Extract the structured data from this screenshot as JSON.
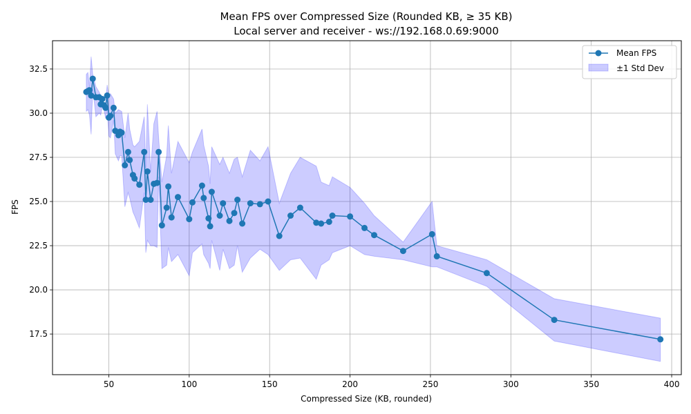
{
  "chart_data": {
    "type": "line",
    "title": "Mean FPS over Compressed Size (Rounded KB, ≥ 35 KB)",
    "subtitle": "Local server and receiver - ws://192.168.0.69:9000",
    "xlabel": "Compressed Size (KB, rounded)",
    "ylabel": "FPS",
    "xlim": [
      15,
      406
    ],
    "ylim": [
      15.2,
      34.1
    ],
    "xticks": [
      50,
      100,
      150,
      200,
      250,
      300,
      350,
      400
    ],
    "yticks": [
      17.5,
      20.0,
      22.5,
      25.0,
      27.5,
      30.0,
      32.5
    ],
    "grid": true,
    "legend_position": "top-right",
    "colors": {
      "line": "#1f77b4",
      "band": "#0000ff",
      "grid": "#b0b0b0"
    },
    "series": [
      {
        "name": "Mean FPS",
        "x": [
          36,
          37,
          38,
          39,
          40,
          42,
          44,
          45,
          46,
          47,
          48,
          49,
          50,
          51,
          53,
          54,
          56,
          57,
          58,
          60,
          62,
          63,
          65,
          66,
          69,
          72,
          73,
          74,
          76,
          78,
          80,
          81,
          83,
          86,
          87,
          89,
          93,
          100,
          102,
          108,
          109,
          112,
          113,
          114,
          119,
          121,
          125,
          128,
          130,
          133,
          138,
          144,
          149,
          156,
          163,
          169,
          179,
          182,
          187,
          189,
          200,
          209,
          215,
          233,
          251,
          254,
          285,
          327,
          393
        ],
        "y": [
          31.2,
          31.25,
          31.3,
          31.0,
          31.95,
          30.9,
          30.9,
          30.5,
          30.8,
          30.45,
          30.3,
          31.0,
          29.75,
          29.85,
          30.3,
          29.0,
          28.75,
          28.95,
          28.9,
          27.05,
          27.8,
          27.35,
          26.5,
          26.3,
          25.95,
          27.8,
          25.1,
          26.7,
          25.1,
          26.0,
          26.05,
          27.8,
          23.65,
          24.65,
          25.85,
          24.1,
          25.25,
          24.0,
          24.95,
          25.9,
          25.2,
          24.05,
          23.6,
          25.55,
          24.2,
          24.9,
          23.9,
          24.35,
          25.1,
          23.75,
          24.9,
          24.85,
          25.0,
          23.05,
          24.2,
          24.65,
          23.8,
          23.75,
          23.85,
          24.2,
          24.15,
          23.5,
          23.1,
          22.2,
          23.15,
          21.9,
          20.95,
          18.3,
          17.2
        ]
      },
      {
        "name": "±1 Std Dev",
        "x": [
          36,
          37,
          38,
          39,
          40,
          42,
          44,
          45,
          46,
          47,
          48,
          49,
          50,
          51,
          53,
          54,
          56,
          57,
          58,
          60,
          62,
          63,
          65,
          66,
          69,
          72,
          73,
          74,
          76,
          78,
          80,
          81,
          83,
          86,
          87,
          89,
          93,
          100,
          102,
          108,
          109,
          112,
          113,
          114,
          119,
          121,
          125,
          128,
          130,
          133,
          138,
          144,
          149,
          156,
          163,
          169,
          179,
          182,
          187,
          189,
          200,
          209,
          215,
          233,
          251,
          254,
          285,
          327,
          393
        ],
        "upper": [
          32.2,
          32.3,
          31.5,
          33.2,
          32.2,
          31.5,
          31.2,
          31.0,
          30.9,
          30.5,
          30.6,
          31.6,
          31.0,
          31.1,
          30.8,
          30.0,
          30.2,
          30.15,
          30.1,
          28.6,
          30.0,
          29.1,
          28.2,
          28.1,
          28.4,
          29.8,
          26.9,
          30.5,
          26.7,
          29.4,
          30.1,
          28.6,
          26.1,
          27.6,
          29.3,
          26.6,
          28.4,
          27.2,
          27.8,
          29.1,
          28.2,
          27.0,
          26.0,
          28.1,
          27.1,
          27.5,
          26.6,
          27.4,
          27.5,
          26.4,
          27.9,
          27.3,
          28.1,
          24.9,
          26.6,
          27.5,
          27.0,
          26.1,
          25.9,
          26.4,
          25.8,
          24.9,
          24.2,
          22.7,
          25.0,
          22.5,
          21.7,
          19.5,
          18.4
        ],
        "lower": [
          30.1,
          30.2,
          29.9,
          28.8,
          31.4,
          29.8,
          30.0,
          29.9,
          30.4,
          30.2,
          29.7,
          30.2,
          28.7,
          28.6,
          29.6,
          27.7,
          27.3,
          27.6,
          27.6,
          24.7,
          25.5,
          25.2,
          24.4,
          24.2,
          23.5,
          25.5,
          22.1,
          22.8,
          22.5,
          22.5,
          22.4,
          26.4,
          21.2,
          21.4,
          22.4,
          21.6,
          22.0,
          20.8,
          22.1,
          22.6,
          22.0,
          21.5,
          21.2,
          22.8,
          21.1,
          22.3,
          21.2,
          21.4,
          22.5,
          21.0,
          21.8,
          22.3,
          22.0,
          21.1,
          21.7,
          21.8,
          20.6,
          21.4,
          21.7,
          22.1,
          22.5,
          22.0,
          21.9,
          21.7,
          21.3,
          21.3,
          20.2,
          17.1,
          15.95
        ]
      }
    ]
  }
}
